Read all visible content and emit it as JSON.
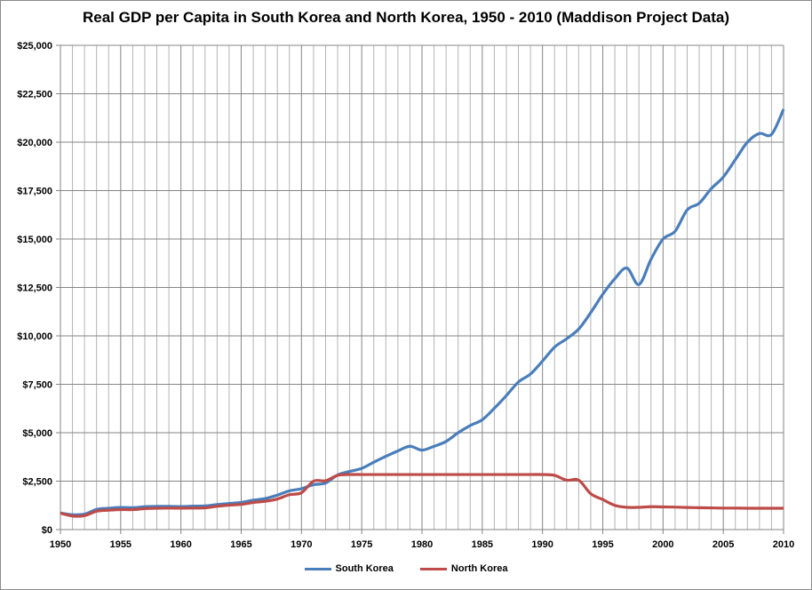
{
  "chart_data": {
    "type": "line",
    "title": "Real GDP per Capita in South Korea and North Korea, 1950 - 2010 (Maddison Project Data)",
    "xlabel": "",
    "ylabel": "",
    "xlim": [
      1950,
      2010
    ],
    "ylim": [
      0,
      25000
    ],
    "x_ticks": [
      "1950",
      "1955",
      "1960",
      "1965",
      "1970",
      "1975",
      "1980",
      "1985",
      "1990",
      "1995",
      "2000",
      "2005",
      "2010"
    ],
    "y_ticks": [
      "$0",
      "$2,500",
      "$5,000",
      "$7,500",
      "$10,000",
      "$12,500",
      "$15,000",
      "$17,500",
      "$20,000",
      "$22,500",
      "$25,000"
    ],
    "grid": true,
    "legend": "bottom",
    "x": [
      1950,
      1951,
      1952,
      1953,
      1954,
      1955,
      1956,
      1957,
      1958,
      1959,
      1960,
      1961,
      1962,
      1963,
      1964,
      1965,
      1966,
      1967,
      1968,
      1969,
      1970,
      1971,
      1972,
      1973,
      1974,
      1975,
      1976,
      1977,
      1978,
      1979,
      1980,
      1981,
      1982,
      1983,
      1984,
      1985,
      1986,
      1987,
      1988,
      1989,
      1990,
      1991,
      1992,
      1993,
      1994,
      1995,
      1996,
      1997,
      1998,
      1999,
      2000,
      2001,
      2002,
      2003,
      2004,
      2005,
      2006,
      2007,
      2008,
      2009,
      2010
    ],
    "series": [
      {
        "name": "South Korea",
        "color": "#4a7ebb",
        "values": [
          854,
          770,
          800,
          1040,
          1100,
          1140,
          1130,
          1180,
          1200,
          1200,
          1190,
          1210,
          1220,
          1290,
          1350,
          1400,
          1520,
          1600,
          1780,
          2000,
          2110,
          2320,
          2400,
          2820,
          3000,
          3160,
          3480,
          3780,
          4060,
          4300,
          4100,
          4300,
          4550,
          5000,
          5370,
          5670,
          6260,
          6920,
          7620,
          8030,
          8700,
          9420,
          9850,
          10350,
          11200,
          12150,
          12950,
          13500,
          12650,
          13950,
          15000,
          15400,
          16500,
          16850,
          17600,
          18200,
          19100,
          20000,
          20450,
          20400,
          21700
        ]
      },
      {
        "name": "North Korea",
        "color": "#be4b48",
        "values": [
          850,
          700,
          720,
          950,
          1000,
          1030,
          1030,
          1080,
          1100,
          1110,
          1105,
          1110,
          1120,
          1200,
          1260,
          1300,
          1400,
          1460,
          1580,
          1800,
          1900,
          2500,
          2520,
          2800,
          2841,
          2841,
          2841,
          2841,
          2841,
          2841,
          2841,
          2841,
          2841,
          2841,
          2841,
          2841,
          2841,
          2841,
          2841,
          2841,
          2841,
          2800,
          2550,
          2550,
          1850,
          1550,
          1250,
          1150,
          1150,
          1180,
          1170,
          1160,
          1140,
          1130,
          1120,
          1110,
          1110,
          1100,
          1100,
          1100,
          1100
        ]
      }
    ]
  }
}
